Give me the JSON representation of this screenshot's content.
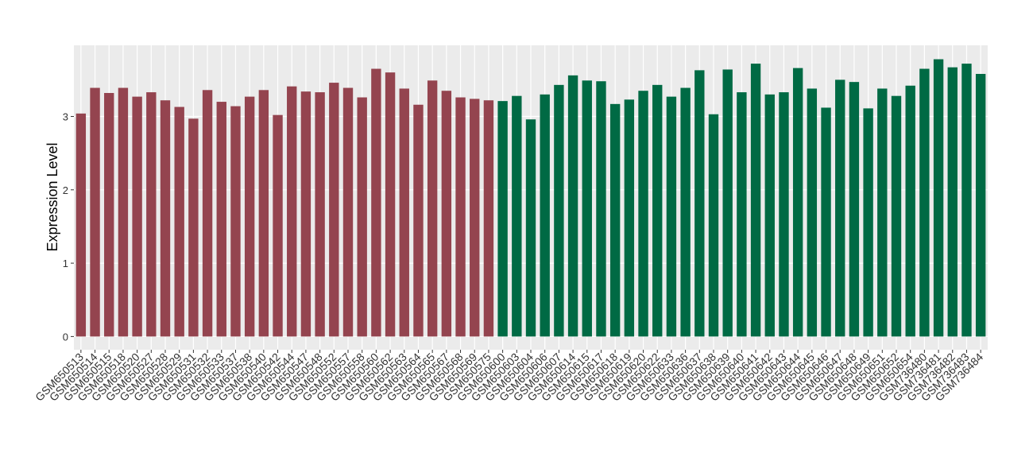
{
  "chart_data": {
    "type": "bar",
    "y_label": "Expression Level",
    "categories": [
      "GSM650513",
      "GSM650514",
      "GSM650515",
      "GSM650518",
      "GSM650520",
      "GSM650527",
      "GSM650528",
      "GSM650529",
      "GSM650531",
      "GSM650532",
      "GSM650533",
      "GSM650537",
      "GSM650538",
      "GSM650540",
      "GSM650542",
      "GSM650544",
      "GSM650547",
      "GSM650548",
      "GSM650552",
      "GSM650557",
      "GSM650558",
      "GSM650560",
      "GSM650562",
      "GSM650563",
      "GSM650564",
      "GSM650565",
      "GSM650567",
      "GSM650568",
      "GSM650569",
      "GSM650575",
      "GSM650600",
      "GSM650603",
      "GSM650604",
      "GSM650606",
      "GSM650607",
      "GSM650614",
      "GSM650615",
      "GSM650617",
      "GSM650618",
      "GSM650619",
      "GSM650620",
      "GSM650622",
      "GSM650633",
      "GSM650636",
      "GSM650637",
      "GSM650638",
      "GSM650639",
      "GSM650640",
      "GSM650641",
      "GSM650642",
      "GSM650643",
      "GSM650644",
      "GSM650645",
      "GSM650646",
      "GSM650647",
      "GSM650648",
      "GSM650649",
      "GSM650651",
      "GSM650652",
      "GSM650654",
      "GSM736480",
      "GSM736481",
      "GSM736482",
      "GSM736483",
      "GSM736484"
    ],
    "values": [
      3.04,
      3.39,
      3.32,
      3.39,
      3.27,
      3.33,
      3.22,
      3.13,
      2.97,
      3.36,
      3.2,
      3.14,
      3.27,
      3.36,
      3.02,
      3.41,
      3.34,
      3.33,
      3.46,
      3.39,
      3.26,
      3.65,
      3.6,
      3.38,
      3.16,
      3.49,
      3.35,
      3.26,
      3.24,
      3.22,
      3.21,
      3.28,
      2.96,
      3.3,
      3.43,
      3.56,
      3.49,
      3.48,
      3.17,
      3.23,
      3.35,
      3.43,
      3.27,
      3.39,
      3.63,
      3.03,
      3.64,
      3.33,
      3.72,
      3.3,
      3.33,
      3.66,
      3.38,
      3.12,
      3.5,
      3.47,
      3.11,
      3.38,
      3.28,
      3.42,
      3.65,
      3.78,
      3.67,
      3.72,
      3.58
    ],
    "colors": [
      "#94444f",
      "#94444f",
      "#94444f",
      "#94444f",
      "#94444f",
      "#94444f",
      "#94444f",
      "#94444f",
      "#94444f",
      "#94444f",
      "#94444f",
      "#94444f",
      "#94444f",
      "#94444f",
      "#94444f",
      "#94444f",
      "#94444f",
      "#94444f",
      "#94444f",
      "#94444f",
      "#94444f",
      "#94444f",
      "#94444f",
      "#94444f",
      "#94444f",
      "#94444f",
      "#94444f",
      "#94444f",
      "#94444f",
      "#94444f",
      "#006a44",
      "#006a44",
      "#006a44",
      "#006a44",
      "#006a44",
      "#006a44",
      "#006a44",
      "#006a44",
      "#006a44",
      "#006a44",
      "#006a44",
      "#006a44",
      "#006a44",
      "#006a44",
      "#006a44",
      "#006a44",
      "#006a44",
      "#006a44",
      "#006a44",
      "#006a44",
      "#006a44",
      "#006a44",
      "#006a44",
      "#006a44",
      "#006a44",
      "#006a44",
      "#006a44",
      "#006a44",
      "#006a44",
      "#006a44",
      "#006a44",
      "#006a44",
      "#006a44",
      "#006a44",
      "#006a44"
    ],
    "ylim": [
      -0.18,
      3.97
    ],
    "yticks": [
      0,
      1,
      2,
      3
    ],
    "grid": true
  }
}
